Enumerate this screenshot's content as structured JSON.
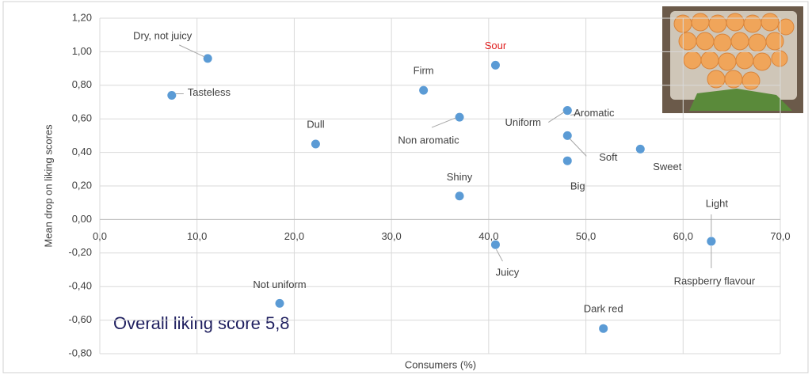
{
  "chart_data": {
    "type": "scatter",
    "x_label": "Consumers (%)",
    "y_label": "Mean drop on liking scores",
    "annotation": "Overall liking score 5,8",
    "color": "#5b9bd5",
    "grid": true,
    "xlim": [
      0,
      70
    ],
    "ylim": [
      -0.8,
      1.2
    ],
    "xticks": [
      {
        "value": 0,
        "label": "0,0"
      },
      {
        "value": 10,
        "label": "10,0"
      },
      {
        "value": 20,
        "label": "20,0"
      },
      {
        "value": 30,
        "label": "30,0"
      },
      {
        "value": 40,
        "label": "40,0"
      },
      {
        "value": 50,
        "label": "50,0"
      },
      {
        "value": 60,
        "label": "60,0"
      },
      {
        "value": 70,
        "label": "70,0"
      }
    ],
    "yticks": [
      {
        "value": -0.8,
        "label": "-0,80"
      },
      {
        "value": -0.6,
        "label": "-0,60"
      },
      {
        "value": -0.4,
        "label": "-0,40"
      },
      {
        "value": -0.2,
        "label": "-0,20"
      },
      {
        "value": 0,
        "label": "0,00"
      },
      {
        "value": 0.2,
        "label": "0,20"
      },
      {
        "value": 0.4,
        "label": "0,40"
      },
      {
        "value": 0.6,
        "label": "0,60"
      },
      {
        "value": 0.8,
        "label": "0,80"
      },
      {
        "value": 1.0,
        "label": "1,00"
      },
      {
        "value": 1.2,
        "label": "1,20"
      }
    ],
    "points": [
      {
        "label": "Dry, not juicy",
        "x": 11.1,
        "y": 0.96
      },
      {
        "label": "Tasteless",
        "x": 7.4,
        "y": 0.74
      },
      {
        "label": "Firm",
        "x": 33.3,
        "y": 0.77
      },
      {
        "label": "Sour",
        "x": 40.7,
        "y": 0.92,
        "label_color": "#e02020"
      },
      {
        "label": "Non aromatic",
        "x": 37.0,
        "y": 0.61
      },
      {
        "label": "Dull",
        "x": 22.2,
        "y": 0.45
      },
      {
        "label": "Uniform",
        "x": 48.1,
        "y": 0.65
      },
      {
        "label": "Aromatic",
        "x": 48.1,
        "y": 0.65
      },
      {
        "label": "Soft",
        "x": 48.1,
        "y": 0.5
      },
      {
        "label": "Big",
        "x": 48.1,
        "y": 0.35
      },
      {
        "label": "Sweet",
        "x": 55.6,
        "y": 0.42
      },
      {
        "label": "Shiny",
        "x": 37.0,
        "y": 0.14
      },
      {
        "label": "Light",
        "x": 62.9,
        "y": -0.13
      },
      {
        "label": "Raspberry flavour",
        "x": 62.9,
        "y": -0.13
      },
      {
        "label": "Juicy",
        "x": 40.7,
        "y": -0.15
      },
      {
        "label": "Not uniform",
        "x": 18.5,
        "y": -0.5
      },
      {
        "label": "Dark red",
        "x": 51.8,
        "y": -0.65
      }
    ]
  }
}
